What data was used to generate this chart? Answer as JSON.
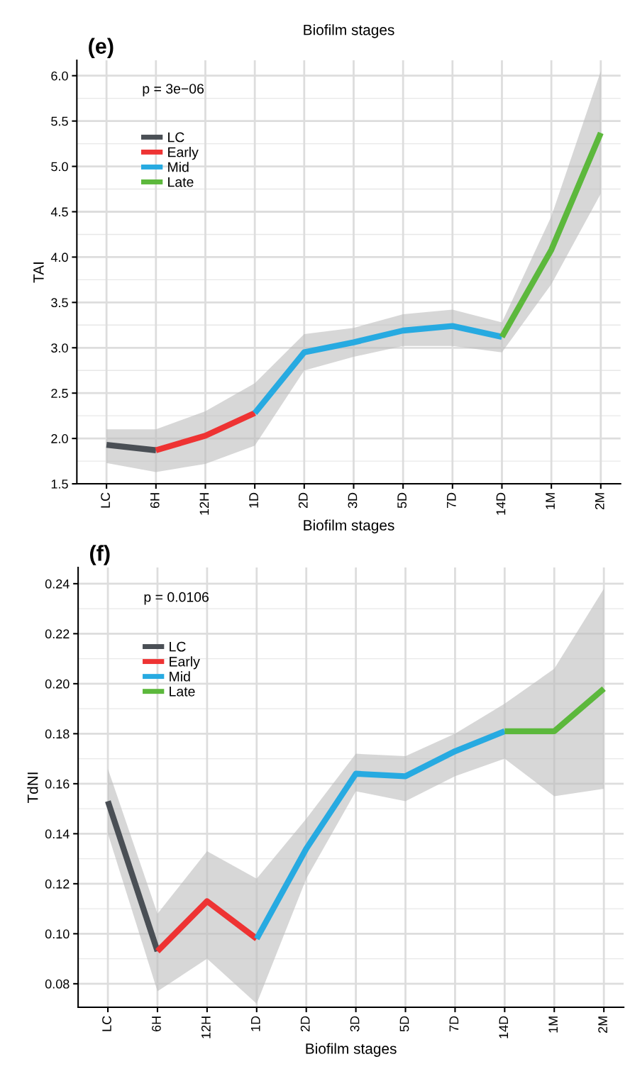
{
  "chart_data": [
    {
      "type": "line",
      "title": "(e)",
      "xlabel": "Biofilm stages",
      "ylabel": "TAI",
      "annotations": [
        "p = 3e−06",
        "Biofilm stages"
      ],
      "categories": [
        "LC",
        "6H",
        "12H",
        "1D",
        "2D",
        "3D",
        "5D",
        "7D",
        "14D",
        "1M",
        "2M"
      ],
      "series": [
        {
          "name": "LC",
          "color": "#4a4f55",
          "values": [
            1.93,
            1.87,
            null,
            null,
            null,
            null,
            null,
            null,
            null,
            null,
            null
          ],
          "lower": [
            1.73,
            1.63,
            null,
            null,
            null,
            null,
            null,
            null,
            null,
            null,
            null
          ],
          "upper": [
            2.1,
            2.1,
            null,
            null,
            null,
            null,
            null,
            null,
            null,
            null,
            null
          ]
        },
        {
          "name": "Early",
          "color": "#ee3333",
          "values": [
            null,
            1.87,
            2.03,
            2.28,
            null,
            null,
            null,
            null,
            null,
            null,
            null
          ],
          "lower": [
            null,
            1.63,
            1.72,
            1.92,
            null,
            null,
            null,
            null,
            null,
            null,
            null
          ],
          "upper": [
            null,
            2.1,
            2.3,
            2.61,
            null,
            null,
            null,
            null,
            null,
            null,
            null
          ]
        },
        {
          "name": "Mid",
          "color": "#27aae1",
          "values": [
            null,
            null,
            null,
            2.28,
            2.95,
            3.06,
            3.19,
            3.24,
            3.12,
            null,
            null
          ],
          "lower": [
            null,
            null,
            null,
            1.92,
            2.75,
            2.9,
            3.02,
            3.02,
            2.95,
            null,
            null
          ],
          "upper": [
            null,
            null,
            null,
            2.61,
            3.15,
            3.22,
            3.37,
            3.42,
            3.28,
            null,
            null
          ]
        },
        {
          "name": "Late",
          "color": "#5cb83c",
          "values": [
            null,
            null,
            null,
            null,
            null,
            null,
            null,
            null,
            3.12,
            4.08,
            5.37
          ],
          "lower": [
            null,
            null,
            null,
            null,
            null,
            null,
            null,
            null,
            2.95,
            3.7,
            4.7
          ],
          "upper": [
            null,
            null,
            null,
            null,
            null,
            null,
            null,
            null,
            3.28,
            4.45,
            6.05
          ]
        }
      ],
      "ylim": [
        1.5,
        6.17
      ],
      "yticks": [
        {
          "value": 1.5,
          "label": "1.5"
        },
        {
          "value": 2.0,
          "label": "2.0"
        },
        {
          "value": 2.5,
          "label": "2.5"
        },
        {
          "value": 3.0,
          "label": "3.0"
        },
        {
          "value": 3.5,
          "label": "3.5"
        },
        {
          "value": 4.0,
          "label": "4.0"
        },
        {
          "value": 4.5,
          "label": "4.5"
        },
        {
          "value": 5.0,
          "label": "5.0"
        },
        {
          "value": 5.5,
          "label": "5.5"
        },
        {
          "value": 6.0,
          "label": "6.0"
        }
      ],
      "grid": true,
      "legend": "top left"
    },
    {
      "type": "line",
      "title": "(f)",
      "xlabel": "Biofilm stages",
      "ylabel": "TdNI",
      "annotations": [
        "p = 0.0106"
      ],
      "categories": [
        "LC",
        "6H",
        "12H",
        "1D",
        "2D",
        "3D",
        "5D",
        "7D",
        "14D",
        "1M",
        "2M"
      ],
      "series": [
        {
          "name": "LC",
          "color": "#4a4f55",
          "values": [
            0.153,
            0.093,
            null,
            null,
            null,
            null,
            null,
            null,
            null,
            null,
            null
          ],
          "lower": [
            0.14,
            0.077,
            null,
            null,
            null,
            null,
            null,
            null,
            null,
            null,
            null
          ],
          "upper": [
            0.166,
            0.108,
            null,
            null,
            null,
            null,
            null,
            null,
            null,
            null,
            null
          ]
        },
        {
          "name": "Early",
          "color": "#ee3333",
          "values": [
            null,
            0.093,
            0.113,
            0.098,
            null,
            null,
            null,
            null,
            null,
            null,
            null
          ],
          "lower": [
            null,
            0.077,
            0.09,
            0.072,
            null,
            null,
            null,
            null,
            null,
            null,
            null
          ],
          "upper": [
            null,
            0.108,
            0.133,
            0.122,
            null,
            null,
            null,
            null,
            null,
            null,
            null
          ]
        },
        {
          "name": "Mid",
          "color": "#27aae1",
          "values": [
            null,
            null,
            null,
            0.098,
            0.134,
            0.164,
            0.163,
            0.173,
            0.181,
            null,
            null
          ],
          "lower": [
            null,
            null,
            null,
            0.072,
            0.122,
            0.157,
            0.153,
            0.163,
            0.17,
            null,
            null
          ],
          "upper": [
            null,
            null,
            null,
            0.122,
            0.146,
            0.172,
            0.171,
            0.18,
            0.192,
            null,
            null
          ]
        },
        {
          "name": "Late",
          "color": "#5cb83c",
          "values": [
            null,
            null,
            null,
            null,
            null,
            null,
            null,
            null,
            0.181,
            0.181,
            0.198
          ],
          "lower": [
            null,
            null,
            null,
            null,
            null,
            null,
            null,
            null,
            0.17,
            0.155,
            0.158
          ],
          "upper": [
            null,
            null,
            null,
            null,
            null,
            null,
            null,
            null,
            0.192,
            0.206,
            0.238
          ]
        }
      ],
      "ylim": [
        0.0706,
        0.2465
      ],
      "yticks": [
        {
          "value": 0.08,
          "label": "0.08"
        },
        {
          "value": 0.1,
          "label": "0.10"
        },
        {
          "value": 0.12,
          "label": "0.12"
        },
        {
          "value": 0.14,
          "label": "0.14"
        },
        {
          "value": 0.16,
          "label": "0.16"
        },
        {
          "value": 0.18,
          "label": "0.18"
        },
        {
          "value": 0.2,
          "label": "0.20"
        },
        {
          "value": 0.22,
          "label": "0.22"
        },
        {
          "value": 0.24,
          "label": "0.24"
        }
      ],
      "grid": true,
      "legend": "top left"
    }
  ]
}
